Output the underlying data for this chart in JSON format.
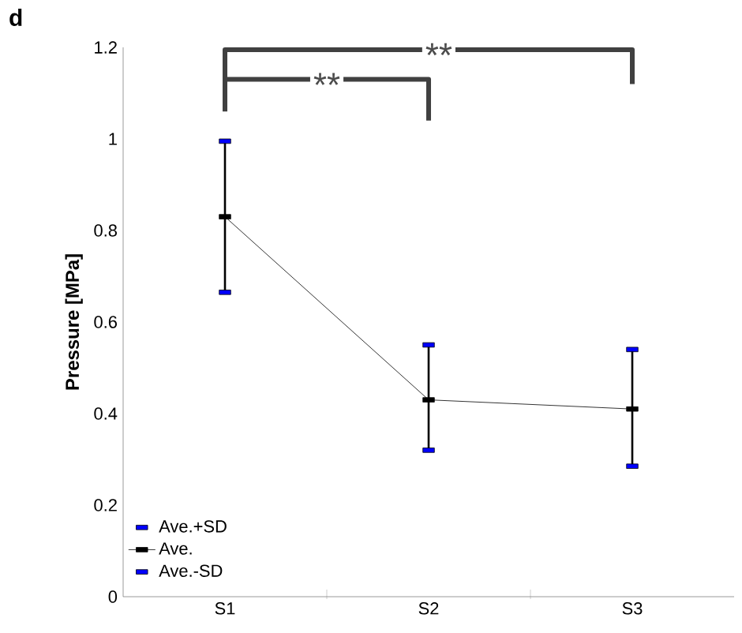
{
  "chart_data": {
    "type": "line",
    "title": "d",
    "ylabel": "Pressure [MPa]",
    "categories": [
      "S1",
      "S2",
      "S3"
    ],
    "series": [
      {
        "name": "Ave.+SD",
        "type": "scatter",
        "color": "#0000ff",
        "values": [
          0.995,
          0.55,
          0.54
        ]
      },
      {
        "name": "Ave.",
        "color": "#000000",
        "values": [
          0.83,
          0.43,
          0.41
        ],
        "errors": [
          [
            0.665,
            0.995
          ],
          [
            0.32,
            0.55
          ],
          [
            0.285,
            0.54
          ]
        ]
      },
      {
        "name": "Ave.-SD",
        "type": "scatter",
        "color": "#0000ff",
        "values": [
          0.665,
          0.32,
          0.285
        ]
      }
    ],
    "ylim": [
      0,
      1.2
    ],
    "yticks": [
      0,
      0.2,
      0.4,
      0.6,
      0.8,
      1,
      1.2
    ],
    "legend": "bottom left",
    "marker": "square",
    "grid": false,
    "annotations": [
      "**",
      "**"
    ]
  }
}
